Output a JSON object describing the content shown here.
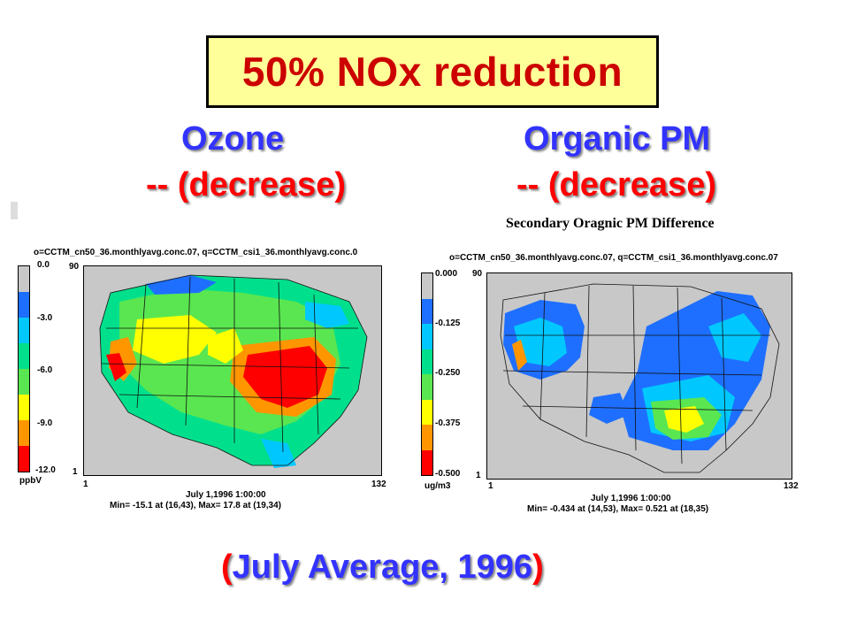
{
  "title": "50% NOx reduction",
  "left": {
    "heading": "Ozone",
    "change": "-- (decrease)",
    "header_line": "o=CCTM_cn50_36.monthlyavg.conc.07, q=CCTM_csi1_36.monthlyavg.conc.0",
    "ticks": [
      "0.0",
      "-3.0",
      "-6.0",
      "-9.0",
      "-12.0"
    ],
    "unit": "ppbV",
    "y_top": "90",
    "y_bottom": "1",
    "x_left": "1",
    "x_right": "132",
    "date": "July 1,1996 1:00:00",
    "stats": "Min=  -15.1 at (16,43), Max=   17.8 at (19,34)"
  },
  "right": {
    "heading": "Organic PM",
    "change": "-- (decrease)",
    "chart_title": "Secondary Oragnic PM Difference",
    "header_line": "o=CCTM_cn50_36.monthlyavg.conc.07, q=CCTM_csi1_36.monthlyavg.conc.07",
    "ticks": [
      "0.000",
      "-0.125",
      "-0.250",
      "-0.375",
      "-0.500"
    ],
    "unit": "ug/m3",
    "y_top": "90",
    "y_bottom": "1",
    "x_left": "1",
    "x_right": "132",
    "date": "July 1,1996 1:00:00",
    "stats": "Min= -0.434 at (14,53), Max=   0.521 at (18,35)"
  },
  "footer": {
    "open": "(",
    "word1": "July",
    "middle": " Average, 1996",
    "close": ")"
  },
  "colors": {
    "scale": [
      "#c8c8c8",
      "#1e6fff",
      "#00c8ff",
      "#00e08c",
      "#5ae650",
      "#ffff00",
      "#ff9600",
      "#ff0000"
    ]
  }
}
